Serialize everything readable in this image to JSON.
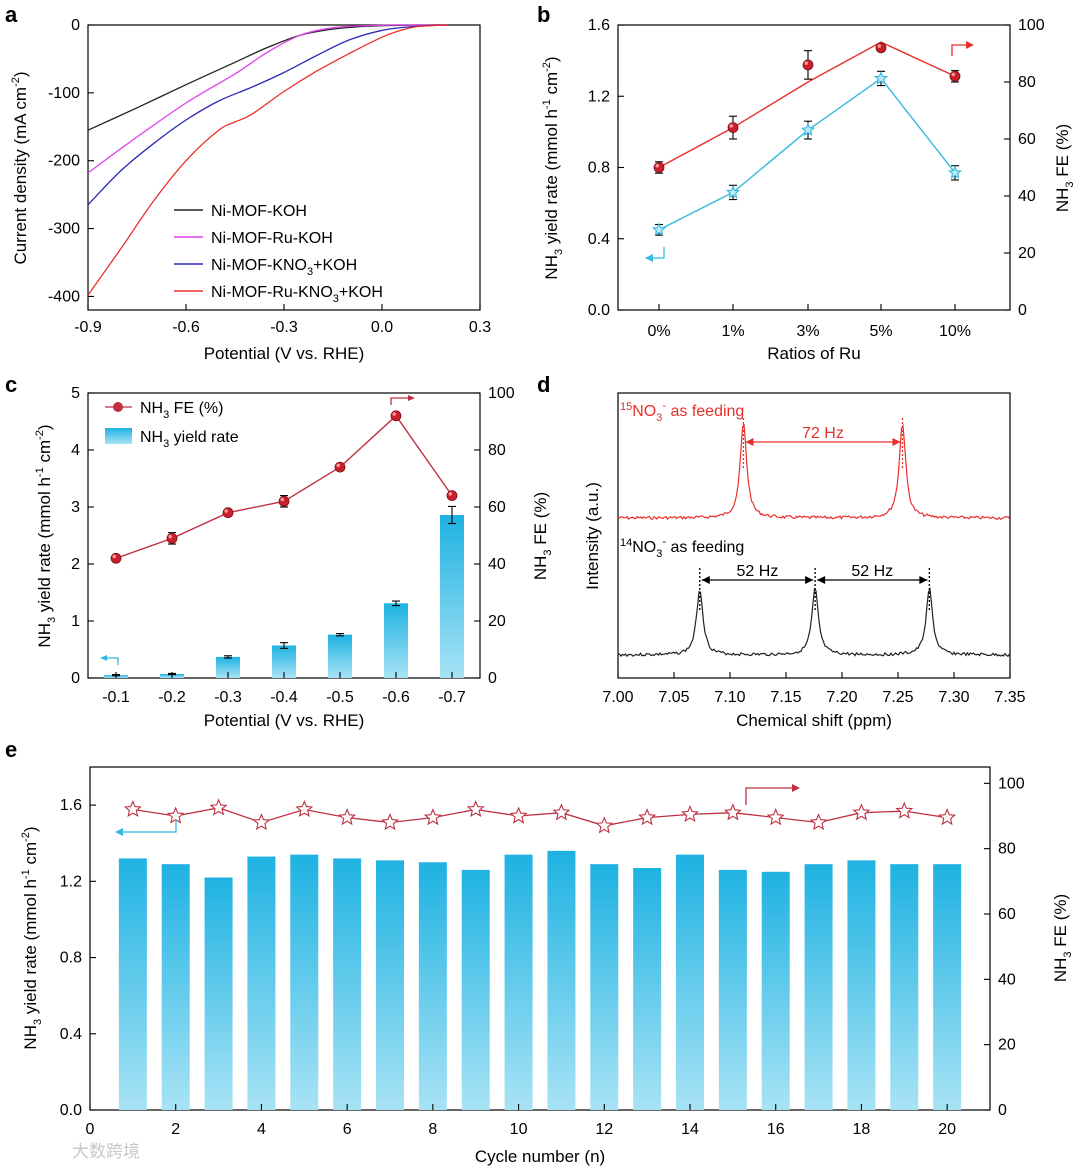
{
  "colors": {
    "black": "#222222",
    "magenta": "#e040e8",
    "blue": "#2a2ab8",
    "red": "#e8302a",
    "darkred": "#c03040",
    "cyan": "#35b8e0",
    "bar_top": "#1eb2e2",
    "bar_bottom": "#a8e3f5"
  },
  "panels": {
    "a": "a",
    "b": "b",
    "c": "c",
    "d": "d",
    "e": "e"
  },
  "watermark": "大数跨境",
  "chart_data": [
    {
      "id": "a",
      "type": "line",
      "xlabel": "Potential (V vs. RHE)",
      "ylabel": "Current density (mA cm",
      "ylabel_sup": "-2",
      "ylabel_end": ")",
      "xlim": [
        -0.9,
        0.3
      ],
      "ylim": [
        -420,
        0
      ],
      "xticks": [
        -0.9,
        -0.6,
        -0.3,
        0.0,
        0.3
      ],
      "xtick_labels": [
        "-0.9",
        "-0.6",
        "-0.3",
        "0.0",
        "0.3"
      ],
      "yticks": [
        0,
        -100,
        -200,
        -300,
        -400
      ],
      "ytick_labels": [
        "0",
        "-100",
        "-200",
        "-300",
        "-400"
      ],
      "series": [
        {
          "name": "Ni-MOF-KOH",
          "name_pre": "Ni-MOF-KOH",
          "name_sub": "",
          "name_post": "",
          "color": "#222222",
          "x": [
            -0.9,
            -0.75,
            -0.6,
            -0.45,
            -0.35,
            -0.25,
            -0.15,
            -0.05,
            0.05,
            0.15,
            0.2
          ],
          "y": [
            -155,
            -122,
            -88,
            -55,
            -33,
            -15,
            -6,
            -2,
            -0.5,
            0,
            0
          ]
        },
        {
          "name": "Ni-MOF-Ru-KOH",
          "name_pre": "Ni-MOF-Ru-KOH",
          "name_sub": "",
          "name_post": "",
          "color": "#e040e8",
          "x": [
            -0.9,
            -0.75,
            -0.6,
            -0.45,
            -0.35,
            -0.25,
            -0.15,
            -0.05,
            0.05,
            0.15,
            0.2
          ],
          "y": [
            -218,
            -165,
            -115,
            -72,
            -40,
            -15,
            -4,
            -1,
            0,
            0,
            0
          ]
        },
        {
          "name": "Ni-MOF-KNO3+KOH",
          "name_pre": "Ni-MOF-KNO",
          "name_sub": "3",
          "name_post": "+KOH",
          "color": "#2a2ab8",
          "x": [
            -0.9,
            -0.8,
            -0.7,
            -0.6,
            -0.5,
            -0.4,
            -0.3,
            -0.2,
            -0.1,
            0.0,
            0.1,
            0.2
          ],
          "y": [
            -265,
            -215,
            -175,
            -140,
            -112,
            -92,
            -70,
            -45,
            -22,
            -8,
            -2,
            0
          ]
        },
        {
          "name": "Ni-MOF-Ru-KNO3+KOH",
          "name_pre": "Ni-MOF-Ru-KNO",
          "name_sub": "3",
          "name_post": "+KOH",
          "color": "#e8302a",
          "x": [
            -0.9,
            -0.8,
            -0.7,
            -0.6,
            -0.5,
            -0.45,
            -0.4,
            -0.3,
            -0.2,
            -0.1,
            0.0,
            0.05,
            0.1,
            0.15,
            0.2
          ],
          "y": [
            -398,
            -330,
            -260,
            -200,
            -155,
            -143,
            -132,
            -98,
            -68,
            -42,
            -18,
            -9,
            -3,
            -1,
            0
          ]
        }
      ]
    },
    {
      "id": "b",
      "type": "line",
      "xlabel": "Ratios of Ru",
      "categories": [
        "0%",
        "1%",
        "3%",
        "5%",
        "10%"
      ],
      "ylabel_left": "NH",
      "ylabel_left_sub": "3",
      "ylabel_left_mid": " yield rate (mmol h",
      "ylabel_left_sup1": "-1",
      "ylabel_left_mid2": " cm",
      "ylabel_left_sup2": "-2",
      "ylabel_left_end": ")",
      "ylabel_right": "NH",
      "ylabel_right_sub": "3",
      "ylabel_right_end": " FE (%)",
      "ylim_left": [
        0,
        1.6
      ],
      "yticks_left": [
        "0.0",
        "0.4",
        "0.8",
        "1.2",
        "1.6"
      ],
      "ylim_right": [
        0,
        100
      ],
      "yticks_right": [
        "0",
        "20",
        "40",
        "60",
        "80",
        "100"
      ],
      "yield": {
        "values": [
          0.45,
          0.66,
          1.01,
          1.3,
          0.77
        ],
        "err": [
          0.03,
          0.04,
          0.05,
          0.04,
          0.04
        ],
        "color": "#35b8e0"
      },
      "fe": {
        "values": [
          50,
          64,
          86,
          92,
          82
        ],
        "err": [
          2,
          4,
          5,
          1,
          2
        ],
        "fit": [
          50,
          64,
          80,
          94,
          82
        ],
        "color": "#e8302a"
      }
    },
    {
      "id": "c",
      "type": "bar",
      "xlabel": "Potential (V vs. RHE)",
      "categories": [
        "-0.1",
        "-0.2",
        "-0.3",
        "-0.4",
        "-0.5",
        "-0.6",
        "-0.7"
      ],
      "ylim_left": [
        0,
        5
      ],
      "yticks_left": [
        "0",
        "1",
        "2",
        "3",
        "4",
        "5"
      ],
      "ylim_right": [
        0,
        100
      ],
      "yticks_right": [
        "0",
        "20",
        "40",
        "60",
        "80",
        "100"
      ],
      "yield": [
        0.05,
        0.07,
        0.37,
        0.57,
        0.76,
        1.31,
        2.86
      ],
      "yield_err": [
        0.01,
        0.01,
        0.02,
        0.05,
        0.02,
        0.04,
        0.15
      ],
      "fe": [
        42,
        49,
        58,
        62,
        74,
        92,
        64
      ],
      "fe_err": [
        1,
        2,
        1,
        2,
        1,
        1,
        1
      ],
      "legend_fe_pre": "NH",
      "legend_fe_sub": "3",
      "legend_fe_post": " FE (%)",
      "legend_yield_pre": "NH",
      "legend_yield_sub": "3",
      "legend_yield_post": " yield rate"
    },
    {
      "id": "d",
      "type": "line",
      "xlabel": "Chemical shift (ppm)",
      "ylabel": "Intensity (a.u.)",
      "xlim": [
        7.0,
        7.35
      ],
      "xticks": [
        "7.00",
        "7.05",
        "7.10",
        "7.15",
        "7.20",
        "7.25",
        "7.30",
        "7.35"
      ],
      "n15": {
        "label_sup": "15",
        "label_text": "NO",
        "label_sub": "3",
        "label_sup2": "-",
        "label_end": " as feeding",
        "peaks": [
          7.112,
          7.254
        ],
        "gap": "72 Hz",
        "color": "#e8302a"
      },
      "n14": {
        "label_sup": "14",
        "label_text": "NO",
        "label_sub": "3",
        "label_sup2": "-",
        "label_end": " as feeding",
        "peaks": [
          7.073,
          7.176,
          7.278
        ],
        "gap1": "52 Hz",
        "gap2": "52 Hz",
        "color": "#222222"
      }
    },
    {
      "id": "e",
      "type": "bar",
      "xlabel": "Cycle number (n)",
      "xticks": [
        "0",
        "2",
        "4",
        "6",
        "8",
        "10",
        "12",
        "14",
        "16",
        "18",
        "20"
      ],
      "ylim_left": [
        0,
        1.8
      ],
      "yticks_left": [
        "0.0",
        "0.4",
        "0.8",
        "1.2",
        "1.6"
      ],
      "ylim_right": [
        0,
        105
      ],
      "yticks_right": [
        "0",
        "20",
        "40",
        "60",
        "80",
        "100"
      ],
      "cycles": [
        1,
        2,
        3,
        4,
        5,
        6,
        7,
        8,
        9,
        10,
        11,
        12,
        13,
        14,
        15,
        16,
        17,
        18,
        19,
        20
      ],
      "yield": [
        1.32,
        1.29,
        1.22,
        1.33,
        1.34,
        1.32,
        1.31,
        1.3,
        1.26,
        1.34,
        1.36,
        1.29,
        1.27,
        1.34,
        1.26,
        1.25,
        1.29,
        1.31,
        1.29,
        1.29
      ],
      "fe": [
        92,
        90,
        92.5,
        88,
        92,
        89.5,
        88,
        89.5,
        92,
        90,
        91,
        87,
        89.5,
        90.5,
        91,
        89.5,
        88,
        91,
        91.5,
        89.5
      ]
    }
  ]
}
